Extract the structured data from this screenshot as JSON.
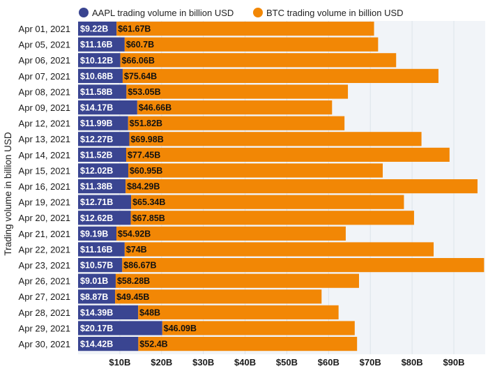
{
  "chart_data": {
    "type": "bar",
    "orientation": "horizontal",
    "stacked": true,
    "title": "",
    "xlabel": "",
    "ylabel": "Trading volume in billion USD",
    "legend_position": "top",
    "grid": true,
    "xlim": [
      0,
      95
    ],
    "x_ticks": [
      10,
      20,
      30,
      40,
      50,
      60,
      70,
      80,
      90
    ],
    "x_tick_labels": [
      "$10B",
      "$20B",
      "$30B",
      "$40B",
      "$50B",
      "$60B",
      "$70B",
      "$80B",
      "$90B"
    ],
    "categories": [
      "Apr 01, 2021",
      "Apr 05, 2021",
      "Apr 06, 2021",
      "Apr 07, 2021",
      "Apr 08, 2021",
      "Apr 09, 2021",
      "Apr 12, 2021",
      "Apr 13, 2021",
      "Apr 14, 2021",
      "Apr 15, 2021",
      "Apr 16, 2021",
      "Apr 19, 2021",
      "Apr 20, 2021",
      "Apr 21, 2021",
      "Apr 22, 2021",
      "Apr 23, 2021",
      "Apr 26, 2021",
      "Apr 27, 2021",
      "Apr 28, 2021",
      "Apr 29, 2021",
      "Apr 30, 2021"
    ],
    "series": [
      {
        "name": "AAPL trading volume in billion USD",
        "color": "#3a4591",
        "values": [
          9.22,
          11.16,
          10.12,
          10.68,
          11.58,
          14.17,
          11.99,
          12.27,
          11.52,
          12.02,
          11.38,
          12.71,
          12.62,
          9.19,
          11.16,
          10.57,
          9.01,
          8.87,
          14.39,
          20.17,
          14.42
        ],
        "labels": [
          "$9.22B",
          "$11.16B",
          "$10.12B",
          "$10.68B",
          "$11.58B",
          "$14.17B",
          "$11.99B",
          "$12.27B",
          "$11.52B",
          "$12.02B",
          "$11.38B",
          "$12.71B",
          "$12.62B",
          "$9.19B",
          "$11.16B",
          "$10.57B",
          "$9.01B",
          "$8.87B",
          "$14.39B",
          "$20.17B",
          "$14.42B"
        ]
      },
      {
        "name": "BTC trading volume in billion USD",
        "color": "#f28705",
        "values": [
          61.67,
          60.7,
          66.06,
          75.64,
          53.05,
          46.66,
          51.82,
          69.98,
          77.45,
          60.95,
          84.29,
          65.34,
          67.85,
          54.92,
          74,
          86.67,
          58.28,
          49.45,
          48,
          46.09,
          52.4
        ],
        "labels": [
          "$61.67B",
          "$60.7B",
          "$66.06B",
          "$75.64B",
          "$53.05B",
          "$46.66B",
          "$51.82B",
          "$69.98B",
          "$77.45B",
          "$60.95B",
          "$84.29B",
          "$65.34B",
          "$67.85B",
          "$54.92B",
          "$74B",
          "$86.67B",
          "$58.28B",
          "$49.45B",
          "$48B",
          "$46.09B",
          "$52.4B"
        ]
      }
    ]
  }
}
